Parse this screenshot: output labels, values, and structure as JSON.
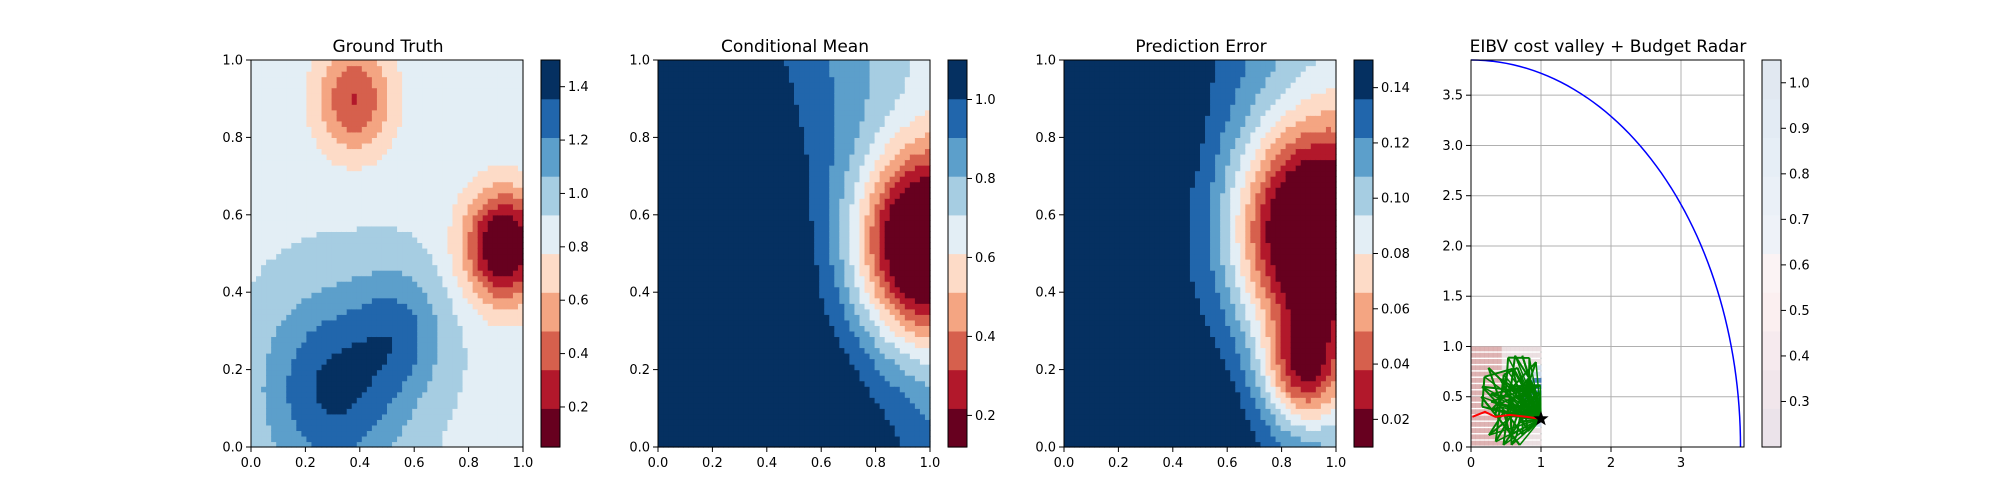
{
  "chart_data": [
    {
      "type": "heatmap",
      "title": "Ground Truth",
      "xlim": [
        0,
        1
      ],
      "ylim": [
        0,
        1
      ],
      "xticks": [
        "0.0",
        "0.2",
        "0.4",
        "0.6",
        "0.8",
        "1.0"
      ],
      "yticks": [
        "0.0",
        "0.2",
        "0.4",
        "0.6",
        "0.8",
        "1.0"
      ],
      "colormap": "RdBu",
      "colorbar": {
        "min": 0.05,
        "max": 1.5,
        "ticks": [
          "0.2",
          "0.4",
          "0.6",
          "0.8",
          "1.0",
          "1.2",
          "1.4"
        ],
        "tick_values": [
          0.2,
          0.4,
          0.6,
          0.8,
          1.0,
          1.2,
          1.4
        ]
      },
      "field_features": [
        {
          "x": 0.93,
          "y": 0.52,
          "value": -0.95,
          "spread": 0.1
        },
        {
          "x": 0.38,
          "y": 0.9,
          "value": -0.55,
          "spread": 0.1
        },
        {
          "x": 0.3,
          "y": 0.15,
          "value": 0.5,
          "spread": 0.18
        },
        {
          "x": 0.55,
          "y": 0.3,
          "value": 0.3,
          "spread": 0.12
        }
      ],
      "base_value": 0.88
    },
    {
      "type": "heatmap",
      "title": "Conditional Mean",
      "xlim": [
        0,
        1
      ],
      "ylim": [
        0,
        1
      ],
      "xticks": [
        "0.0",
        "0.2",
        "0.4",
        "0.6",
        "0.8",
        "1.0"
      ],
      "yticks": [
        "0.0",
        "0.2",
        "0.4",
        "0.6",
        "0.8",
        "1.0"
      ],
      "colormap": "RdBu",
      "colorbar": {
        "min": 0.12,
        "max": 1.1,
        "ticks": [
          "0.2",
          "0.4",
          "0.6",
          "0.8",
          "1.0"
        ],
        "tick_values": [
          0.2,
          0.4,
          0.6,
          0.8,
          1.0
        ]
      },
      "field_features": [
        {
          "x": 0.97,
          "y": 0.52,
          "value": -0.95,
          "spread": 0.17
        }
      ],
      "base_value": 1.07
    },
    {
      "type": "heatmap",
      "title": "Prediction Error",
      "xlim": [
        0,
        1
      ],
      "ylim": [
        0,
        1
      ],
      "xticks": [
        "0.0",
        "0.2",
        "0.4",
        "0.6",
        "0.8",
        "1.0"
      ],
      "yticks": [
        "0.0",
        "0.2",
        "0.4",
        "0.6",
        "0.8",
        "1.0"
      ],
      "colormap": "RdBu",
      "colorbar": {
        "min": 0.01,
        "max": 0.15,
        "ticks": [
          "0.02",
          "0.04",
          "0.06",
          "0.08",
          "0.10",
          "0.12",
          "0.14"
        ],
        "tick_values": [
          0.02,
          0.04,
          0.06,
          0.08,
          0.1,
          0.12,
          0.14
        ]
      },
      "field_features": [
        {
          "x": 0.9,
          "y": 0.55,
          "value": -0.14,
          "spread": 0.2
        },
        {
          "x": 0.88,
          "y": 0.2,
          "value": -0.08,
          "spread": 0.1
        }
      ],
      "base_value": 0.148
    },
    {
      "type": "line",
      "title": "EIBV cost valley + Budget Radar",
      "xlim": [
        0,
        3.9
      ],
      "ylim": [
        0,
        3.85
      ],
      "xticks": [
        "0",
        "1",
        "2",
        "3"
      ],
      "xtick_values": [
        0,
        1,
        2,
        3
      ],
      "yticks": [
        "0.0",
        "0.5",
        "1.0",
        "1.5",
        "2.0",
        "2.5",
        "3.0",
        "3.5"
      ],
      "ytick_values": [
        0,
        0.5,
        1,
        1.5,
        2,
        2.5,
        3,
        3.5
      ],
      "grid": true,
      "budget_radius": 3.85,
      "current_location": [
        1.0,
        0.28
      ],
      "colorbar": {
        "min": 0.2,
        "max": 1.05,
        "ticks": [
          "0.3",
          "0.4",
          "0.5",
          "0.6",
          "0.7",
          "0.8",
          "0.9",
          "1.0"
        ],
        "tick_values": [
          0.3,
          0.4,
          0.5,
          0.6,
          0.7,
          0.8,
          0.9,
          1.0
        ]
      },
      "colors": {
        "radar": "#0000ff",
        "trajectory": "#008000",
        "path": "#ff0000",
        "marker": "#000000"
      }
    }
  ]
}
